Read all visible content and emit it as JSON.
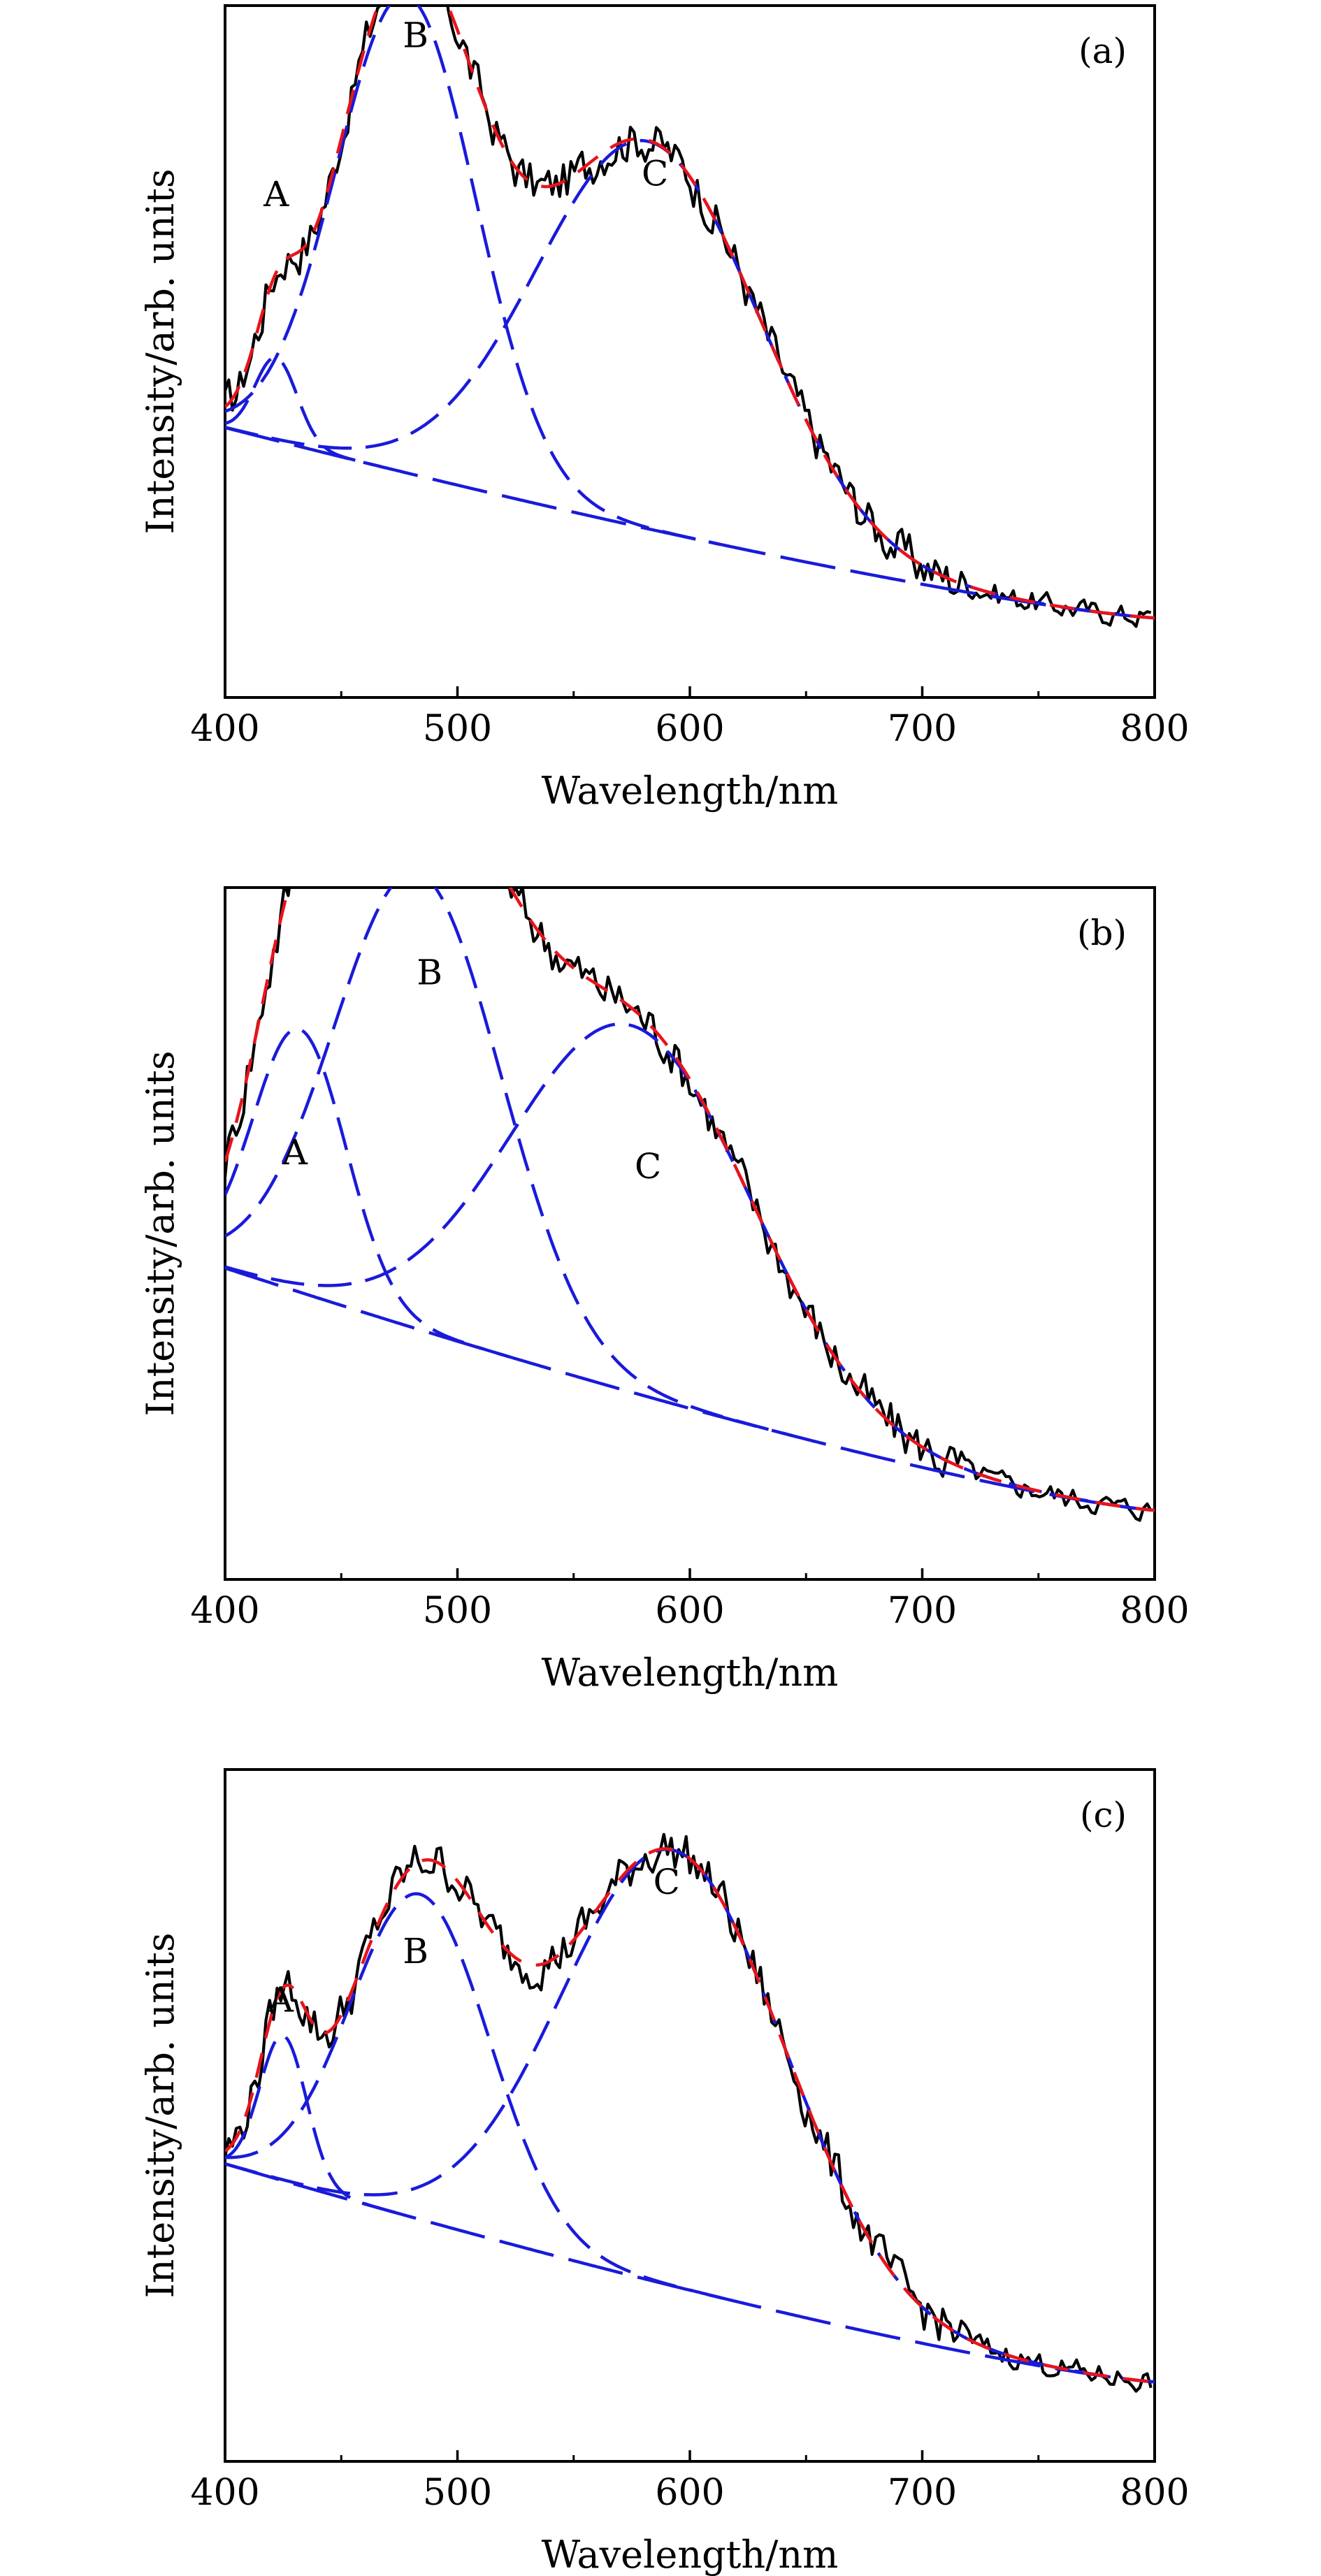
{
  "chart_data": [
    {
      "type": "line",
      "panel": "(a)",
      "xlabel": "Wavelength/nm",
      "ylabel": "Intensity/arb. units",
      "xlim": [
        400,
        800
      ],
      "ylim": [
        0,
        1
      ],
      "xticks": [
        "400",
        "500",
        "600",
        "700",
        "800"
      ],
      "grid": false,
      "peaks": [
        {
          "label": "A",
          "x": 422,
          "y": 0.71
        },
        {
          "label": "B",
          "x": 482,
          "y": 0.94
        },
        {
          "label": "C",
          "x": 585,
          "y": 0.74
        }
      ],
      "components": [
        {
          "center": 422,
          "width": 9,
          "amp": 0.12
        },
        {
          "center": 478,
          "width": 30,
          "amp": 0.69
        },
        {
          "center": 582,
          "width": 48,
          "amp": 0.56
        }
      ],
      "background": {
        "start": 0.39,
        "end": 0.115
      }
    },
    {
      "type": "line",
      "panel": "(b)",
      "xlabel": "Wavelength/nm",
      "ylabel": "Intensity/arb. units",
      "xlim": [
        400,
        800
      ],
      "ylim": [
        0,
        1
      ],
      "xticks": [
        "400",
        "500",
        "600",
        "700",
        "800"
      ],
      "grid": false,
      "peaks": [
        {
          "label": "A",
          "x": 430,
          "y": 0.6
        },
        {
          "label": "B",
          "x": 488,
          "y": 0.86
        },
        {
          "label": "C",
          "x": 582,
          "y": 0.58
        }
      ],
      "components": [
        {
          "center": 432,
          "width": 20,
          "amp": 0.38
        },
        {
          "center": 483,
          "width": 36,
          "amp": 0.66
        },
        {
          "center": 575,
          "width": 52,
          "amp": 0.53
        }
      ],
      "background": {
        "start": 0.45,
        "end": 0.1
      }
    },
    {
      "type": "line",
      "panel": "(c)",
      "xlabel": "Wavelength/nm",
      "ylabel": "Intensity/arb. units",
      "xlim": [
        400,
        800
      ],
      "ylim": [
        0,
        1
      ],
      "xticks": [
        "400",
        "500",
        "600",
        "700",
        "800"
      ],
      "grid": false,
      "peaks": [
        {
          "label": "A",
          "x": 424,
          "y": 0.65
        },
        {
          "label": "B",
          "x": 482,
          "y": 0.72
        },
        {
          "label": "C",
          "x": 590,
          "y": 0.82
        }
      ],
      "components": [
        {
          "center": 425,
          "width": 10,
          "amp": 0.21
        },
        {
          "center": 484,
          "width": 30,
          "amp": 0.47
        },
        {
          "center": 593,
          "width": 48,
          "amp": 0.63
        }
      ],
      "background": {
        "start": 0.43,
        "end": 0.115
      }
    }
  ],
  "colors": {
    "measured": "#000000",
    "fit_total": "#e8141b",
    "components": "#1a1adb"
  }
}
